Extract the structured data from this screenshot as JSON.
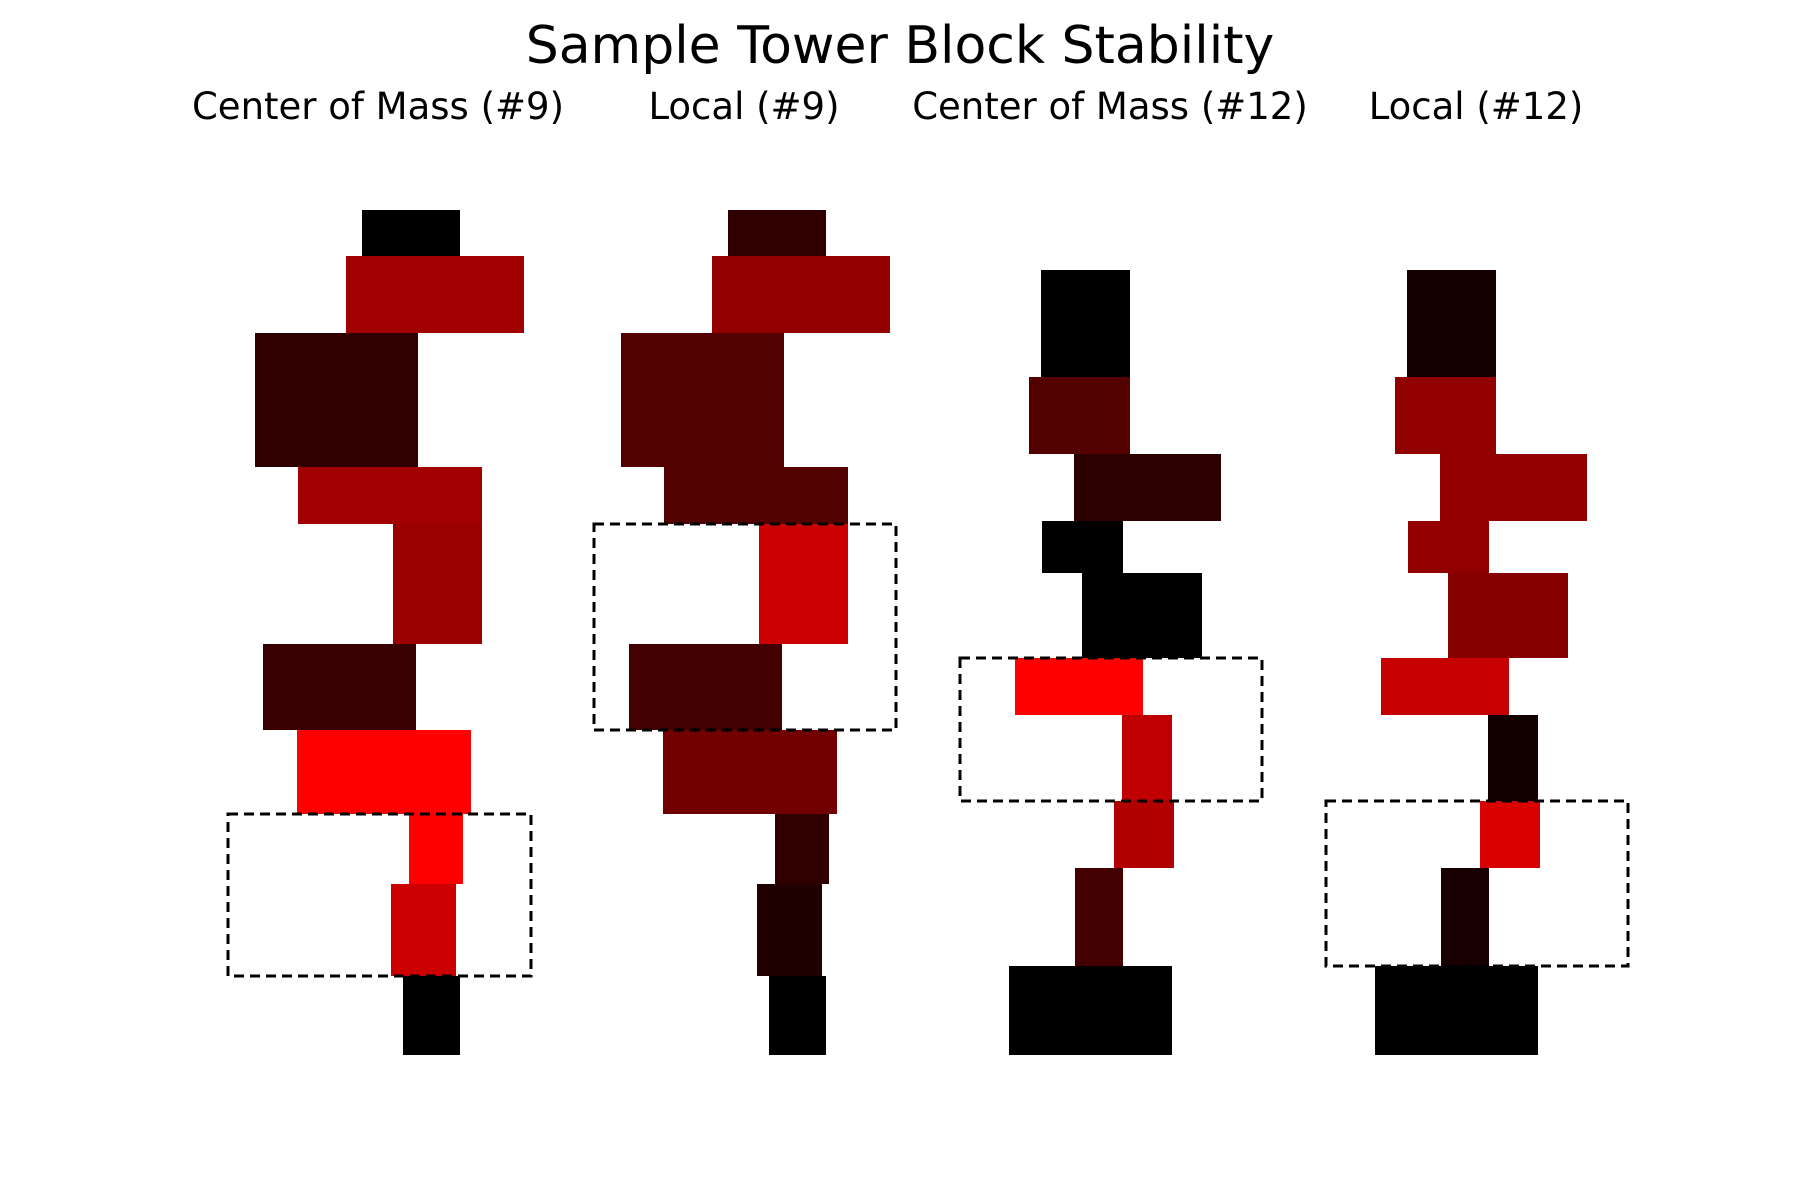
{
  "figure": {
    "title": "Sample Tower Block Stability",
    "panel_titles": [
      "Center of Mass (#9)",
      "Local (#9)",
      "Center of Mass (#12)",
      "Local (#12)"
    ]
  },
  "legend_colors": {
    "dashed_box": "#000000",
    "stable": "#000000",
    "unstable": "#ff0000"
  },
  "chart_data": [
    {
      "type": "diagram",
      "panel": "Center of Mass (#9)",
      "highlighted_region_blocks": [
        8,
        9
      ],
      "blocks": [
        {
          "index": 1,
          "color": "#000000"
        },
        {
          "index": 2,
          "color": "#a00000"
        },
        {
          "index": 3,
          "color": "#300000"
        },
        {
          "index": 4,
          "color": "#a20000"
        },
        {
          "index": 5,
          "color": "#9a0000"
        },
        {
          "index": 6,
          "color": "#380000"
        },
        {
          "index": 7,
          "color": "#ff0000"
        },
        {
          "index": 8,
          "color": "#ff0000"
        },
        {
          "index": 9,
          "color": "#cc0000"
        },
        {
          "index": 10,
          "color": "#000000"
        }
      ]
    },
    {
      "type": "diagram",
      "panel": "Local (#9)",
      "highlighted_region_blocks": [
        5,
        6
      ],
      "blocks": [
        {
          "index": 1,
          "color": "#300000"
        },
        {
          "index": 2,
          "color": "#940000"
        },
        {
          "index": 3,
          "color": "#520000"
        },
        {
          "index": 4,
          "color": "#520000"
        },
        {
          "index": 5,
          "color": "#cc0000"
        },
        {
          "index": 6,
          "color": "#440000"
        },
        {
          "index": 7,
          "color": "#720000"
        },
        {
          "index": 8,
          "color": "#300000"
        },
        {
          "index": 9,
          "color": "#200000"
        },
        {
          "index": 10,
          "color": "#000000"
        }
      ]
    },
    {
      "type": "diagram",
      "panel": "Center of Mass (#12)",
      "highlighted_region_blocks": [
        6,
        7
      ],
      "blocks": [
        {
          "index": 1,
          "color": "#000000"
        },
        {
          "index": 2,
          "color": "#520000"
        },
        {
          "index": 3,
          "color": "#2c0000"
        },
        {
          "index": 4,
          "color": "#000000"
        },
        {
          "index": 5,
          "color": "#000000"
        },
        {
          "index": 6,
          "color": "#ff0000"
        },
        {
          "index": 7,
          "color": "#c00000"
        },
        {
          "index": 8,
          "color": "#b00000"
        },
        {
          "index": 9,
          "color": "#440000"
        },
        {
          "index": 10,
          "color": "#000000"
        }
      ]
    },
    {
      "type": "diagram",
      "panel": "Local (#12)",
      "highlighted_region_blocks": [
        8,
        9
      ],
      "blocks": [
        {
          "index": 1,
          "color": "#140000"
        },
        {
          "index": 2,
          "color": "#920000"
        },
        {
          "index": 3,
          "color": "#920000"
        },
        {
          "index": 4,
          "color": "#920000"
        },
        {
          "index": 5,
          "color": "#860000"
        },
        {
          "index": 6,
          "color": "#c60000"
        },
        {
          "index": 7,
          "color": "#120000"
        },
        {
          "index": 8,
          "color": "#d80000"
        },
        {
          "index": 9,
          "color": "#180000"
        },
        {
          "index": 10,
          "color": "#000000"
        }
      ]
    }
  ]
}
